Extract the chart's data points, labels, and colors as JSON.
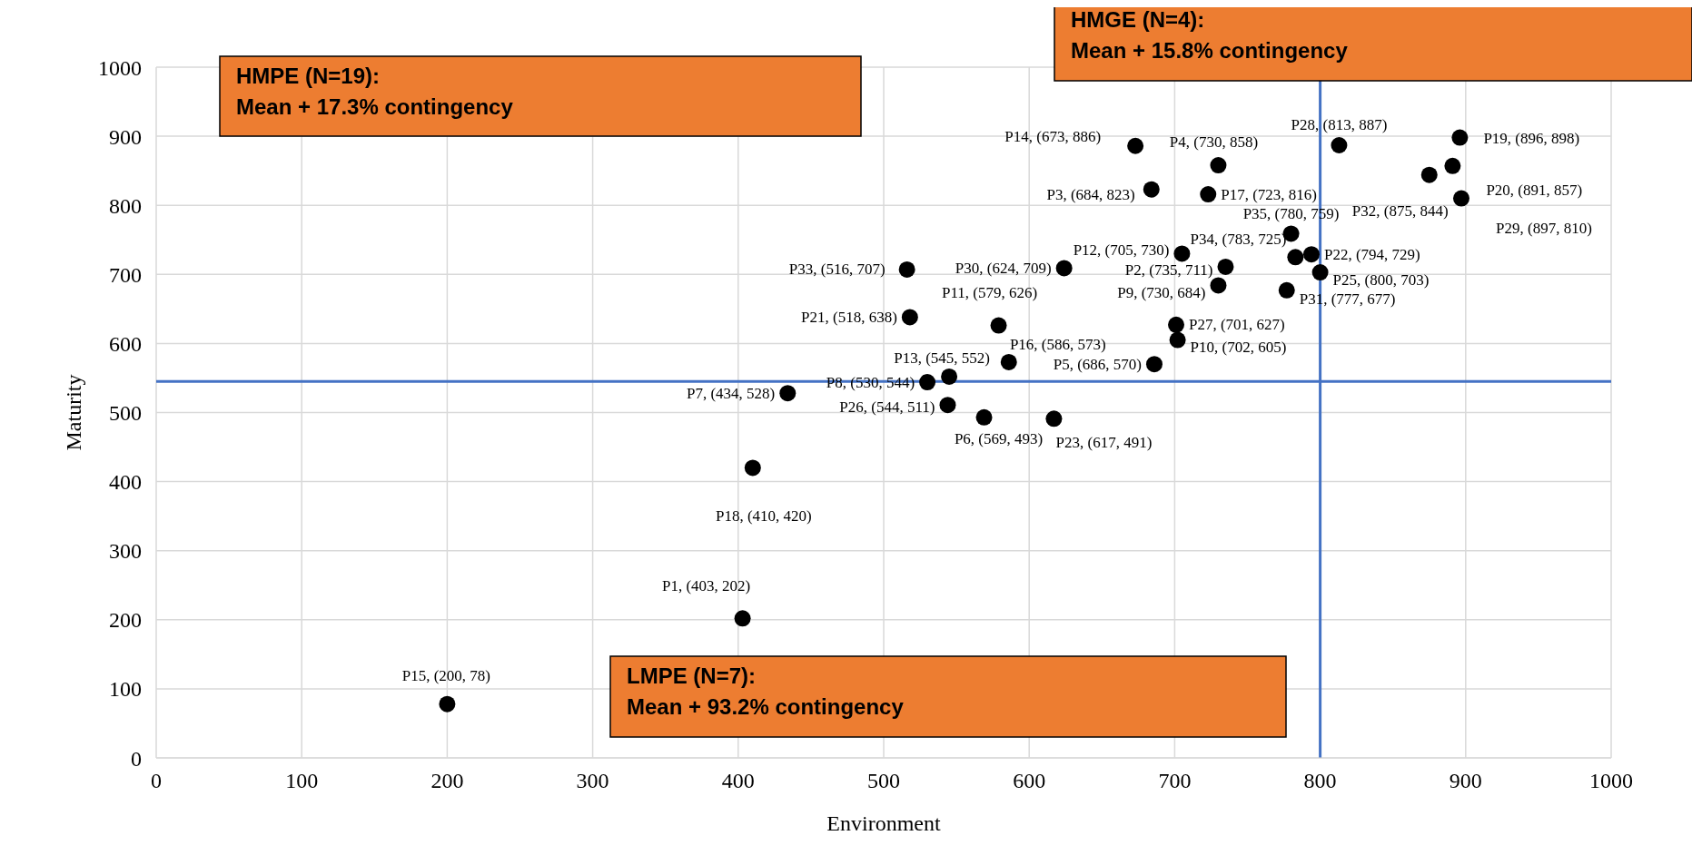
{
  "chart_data": {
    "type": "scatter",
    "xlabel": "Environment",
    "ylabel": "Maturity",
    "xlim": [
      0,
      1000
    ],
    "xticks": [
      0,
      100,
      200,
      300,
      400,
      500,
      600,
      700,
      800,
      900,
      1000
    ],
    "ylim": [
      0,
      1000
    ],
    "yticks": [
      0,
      100,
      200,
      300,
      400,
      500,
      600,
      700,
      800,
      900,
      1000
    ],
    "grid": true,
    "marker": "circle",
    "series": [
      {
        "color": "#000000",
        "x": [
          403,
          735,
          684,
          730,
          686,
          569,
          434,
          530,
          730,
          702,
          579,
          705,
          545,
          673,
          200,
          586,
          723,
          410,
          896,
          891,
          518,
          794,
          617,
          800,
          544,
          701,
          813,
          897,
          624,
          777,
          875,
          516,
          783,
          780
        ],
        "values": [
          202,
          711,
          823,
          858,
          570,
          493,
          528,
          544,
          684,
          605,
          626,
          730,
          552,
          886,
          78,
          573,
          816,
          420,
          898,
          857,
          638,
          729,
          491,
          703,
          511,
          627,
          887,
          810,
          709,
          677,
          844,
          707,
          725,
          759
        ],
        "value_labels": [
          "P1, (403, 202)",
          "P2, (735, 711)",
          "P3, (684, 823)",
          "P4, (730, 858)",
          "P5, (686, 570)",
          "P6, (569, 493)",
          "P7, (434, 528)",
          "P8, (530, 544)",
          "P9, (730, 684)",
          "P10, (702, 605)",
          "P11, (579, 626)",
          "P12, (705, 730)",
          "P13, (545, 552)",
          "P14, (673, 886)",
          "P15, (200, 78)",
          "P16, (586, 573)",
          "P17, (723, 816)",
          "P18, (410, 420)",
          "P19, (896, 898)",
          "P20, (891, 857)",
          "P21, (518, 638)",
          "P22, (794, 729)",
          "P23, (617, 491)",
          "P25, (800, 703)",
          "P26, (544, 511)",
          "P27, (701, 627)",
          "P28, (813, 887)",
          "P29, (897, 810)",
          "P30, (624, 709)",
          "P31, (777, 677)",
          "P32, (875, 844)",
          "P33, (516, 707)",
          "P34, (783, 725)",
          "P35, (780, 759)"
        ]
      }
    ],
    "ref_lines": [
      {
        "axis": "x",
        "value": 800,
        "color": "#4472c4"
      },
      {
        "axis": "y",
        "value": 545,
        "color": "#4472c4"
      }
    ],
    "annotations": [
      "HMGE (N=4):\nMean + 15.8% contingency",
      "HMPE (N=19):\nMean + 17.3% contingency",
      "LMPE (N=7):\nMean + 93.2% contingency"
    ]
  }
}
